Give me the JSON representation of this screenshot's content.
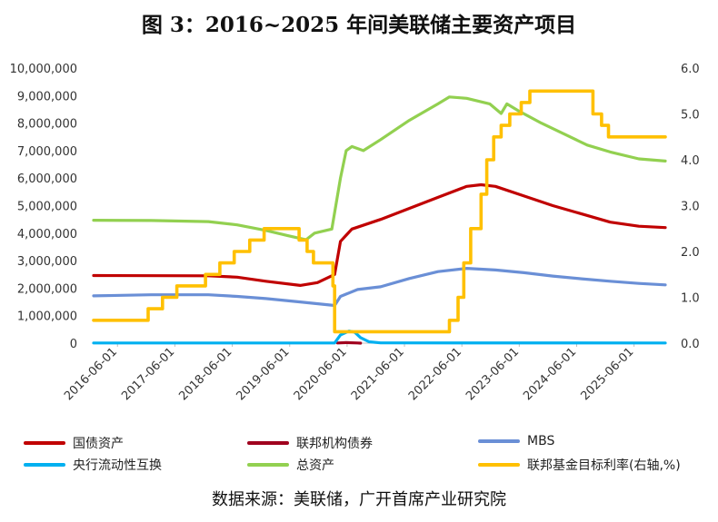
{
  "title": "图 3：2016~2025 年间美联储主要资产项目",
  "source": "数据来源：美联储，广开首席产业研究院",
  "chart_data": {
    "type": "line",
    "grid": false,
    "legend_position": "bottom",
    "x_tick_labels": [
      "2016-06-01",
      "2017-06-01",
      "2018-06-01",
      "2019-06-01",
      "2020-06-01",
      "2021-06-01",
      "2022-06-01",
      "2023-06-01",
      "2024-06-01",
      "2025-06-01"
    ],
    "x_range": [
      2016.0,
      2025.96
    ],
    "y_left": {
      "ticks": [
        "0",
        "1,000,000",
        "2,000,000",
        "3,000,000",
        "4,000,000",
        "5,000,000",
        "6,000,000",
        "7,000,000",
        "8,000,000",
        "9,000,000",
        "10,000,000"
      ],
      "range": [
        0,
        10000000
      ]
    },
    "y_right": {
      "ticks": [
        "0.0",
        "1.0",
        "2.0",
        "3.0",
        "4.0",
        "5.0",
        "6.0"
      ],
      "range": [
        0,
        6
      ]
    },
    "series": [
      {
        "name": "国债资产",
        "axis": "left",
        "color": "#C00000",
        "width": 3.2,
        "points": [
          [
            2016.0,
            2460000
          ],
          [
            2018.0,
            2450000
          ],
          [
            2018.5,
            2400000
          ],
          [
            2019.0,
            2250000
          ],
          [
            2019.6,
            2100000
          ],
          [
            2019.9,
            2200000
          ],
          [
            2020.2,
            2500000
          ],
          [
            2020.3,
            3700000
          ],
          [
            2020.5,
            4150000
          ],
          [
            2021.0,
            4500000
          ],
          [
            2022.0,
            5300000
          ],
          [
            2022.5,
            5700000
          ],
          [
            2022.75,
            5760000
          ],
          [
            2023.0,
            5700000
          ],
          [
            2023.5,
            5350000
          ],
          [
            2024.0,
            5000000
          ],
          [
            2024.5,
            4700000
          ],
          [
            2025.0,
            4400000
          ],
          [
            2025.5,
            4250000
          ],
          [
            2025.96,
            4200000
          ]
        ]
      },
      {
        "name": "联邦机构债券",
        "axis": "left",
        "color": "#A0001E",
        "width": 3.2,
        "points": [
          [
            2020.25,
            5000
          ],
          [
            2020.4,
            20000
          ],
          [
            2020.6,
            5000
          ],
          [
            2020.65,
            0
          ]
        ]
      },
      {
        "name": "MBS",
        "axis": "left",
        "color": "#6A8FD6",
        "width": 3.2,
        "points": [
          [
            2016.0,
            1720000
          ],
          [
            2017.0,
            1760000
          ],
          [
            2018.0,
            1760000
          ],
          [
            2018.5,
            1700000
          ],
          [
            2019.0,
            1620000
          ],
          [
            2019.6,
            1500000
          ],
          [
            2020.2,
            1370000
          ],
          [
            2020.3,
            1700000
          ],
          [
            2020.6,
            1950000
          ],
          [
            2021.0,
            2050000
          ],
          [
            2021.5,
            2350000
          ],
          [
            2022.0,
            2600000
          ],
          [
            2022.5,
            2720000
          ],
          [
            2023.0,
            2660000
          ],
          [
            2023.5,
            2560000
          ],
          [
            2024.0,
            2440000
          ],
          [
            2024.5,
            2340000
          ],
          [
            2025.0,
            2250000
          ],
          [
            2025.5,
            2170000
          ],
          [
            2025.96,
            2120000
          ]
        ]
      },
      {
        "name": "央行流动性互换",
        "axis": "left",
        "color": "#00B0F0",
        "width": 3.2,
        "points": [
          [
            2016.0,
            5000
          ],
          [
            2020.2,
            5000
          ],
          [
            2020.3,
            300000
          ],
          [
            2020.45,
            440000
          ],
          [
            2020.55,
            400000
          ],
          [
            2020.65,
            200000
          ],
          [
            2020.8,
            50000
          ],
          [
            2021.0,
            10000
          ],
          [
            2025.96,
            5000
          ]
        ]
      },
      {
        "name": "总资产",
        "axis": "left",
        "color": "#92D050",
        "width": 3.2,
        "points": [
          [
            2016.0,
            4470000
          ],
          [
            2017.0,
            4460000
          ],
          [
            2018.0,
            4420000
          ],
          [
            2018.5,
            4300000
          ],
          [
            2019.0,
            4100000
          ],
          [
            2019.4,
            3900000
          ],
          [
            2019.7,
            3760000
          ],
          [
            2019.85,
            4000000
          ],
          [
            2020.15,
            4150000
          ],
          [
            2020.3,
            6000000
          ],
          [
            2020.4,
            7000000
          ],
          [
            2020.5,
            7150000
          ],
          [
            2020.7,
            7000000
          ],
          [
            2021.0,
            7400000
          ],
          [
            2021.5,
            8100000
          ],
          [
            2022.0,
            8700000
          ],
          [
            2022.2,
            8950000
          ],
          [
            2022.5,
            8900000
          ],
          [
            2022.9,
            8700000
          ],
          [
            2023.1,
            8350000
          ],
          [
            2023.2,
            8700000
          ],
          [
            2023.4,
            8450000
          ],
          [
            2023.8,
            8000000
          ],
          [
            2024.2,
            7600000
          ],
          [
            2024.6,
            7200000
          ],
          [
            2025.0,
            6950000
          ],
          [
            2025.5,
            6700000
          ],
          [
            2025.96,
            6620000
          ]
        ]
      },
      {
        "name": "联邦基金目标利率(右轴,%)",
        "axis": "right",
        "color": "#FFC000",
        "width": 3.6,
        "step": true,
        "points": [
          [
            2016.0,
            0.5
          ],
          [
            2016.95,
            0.75
          ],
          [
            2017.2,
            1.0
          ],
          [
            2017.45,
            1.25
          ],
          [
            2017.95,
            1.5
          ],
          [
            2018.2,
            1.75
          ],
          [
            2018.45,
            2.0
          ],
          [
            2018.72,
            2.25
          ],
          [
            2018.97,
            2.5
          ],
          [
            2019.58,
            2.25
          ],
          [
            2019.72,
            2.0
          ],
          [
            2019.83,
            1.75
          ],
          [
            2020.17,
            1.25
          ],
          [
            2020.2,
            0.25
          ],
          [
            2022.2,
            0.5
          ],
          [
            2022.35,
            1.0
          ],
          [
            2022.45,
            1.75
          ],
          [
            2022.57,
            2.5
          ],
          [
            2022.75,
            3.25
          ],
          [
            2022.85,
            4.0
          ],
          [
            2022.97,
            4.5
          ],
          [
            2023.1,
            4.75
          ],
          [
            2023.25,
            5.0
          ],
          [
            2023.45,
            5.25
          ],
          [
            2023.6,
            5.5
          ],
          [
            2024.7,
            5.0
          ],
          [
            2024.85,
            4.75
          ],
          [
            2024.97,
            4.5
          ],
          [
            2025.96,
            4.5
          ]
        ]
      }
    ]
  }
}
